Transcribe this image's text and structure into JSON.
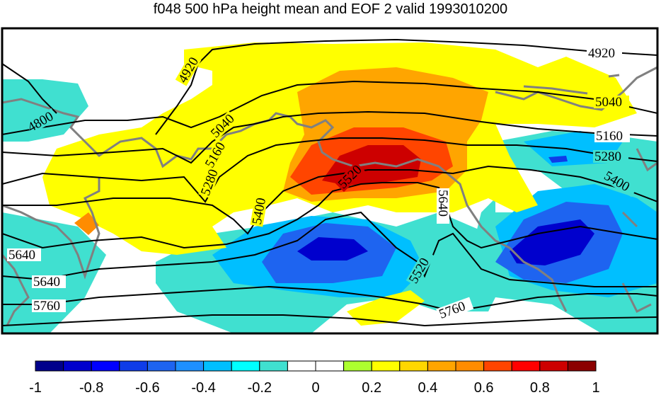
{
  "title": "f048 500 hPa height mean and EOF 2 valid 1993010200",
  "colorbar": {
    "colors": [
      "#00008b",
      "#0000cd",
      "#0000ff",
      "#0f3ce8",
      "#1e64f0",
      "#1e90ff",
      "#00bfff",
      "#00ffff",
      "#40e0d0",
      "#ffffff",
      "#ffffff",
      "#adff2f",
      "#ffff00",
      "#ffd700",
      "#ffa500",
      "#ff8c00",
      "#ff4500",
      "#ff0000",
      "#cd0000",
      "#8b0000"
    ],
    "tick_labels": [
      "-1",
      "-0.8",
      "-0.6",
      "-0.4",
      "-0.2",
      "0",
      "0.2",
      "0.4",
      "0.6",
      "0.8",
      "1"
    ]
  },
  "contours": {
    "labels": [
      "4920",
      "4800",
      "5040",
      "5160",
      "5280",
      "5400",
      "5520",
      "5640",
      "5760",
      "4920",
      "5040",
      "5160",
      "5280",
      "5400",
      "5520",
      "5640",
      "5640",
      "5760"
    ],
    "color": "#000000",
    "coastline_color": "#808080"
  },
  "shading": {
    "cyan": "#40e0d0",
    "light_blue": "#00bfff",
    "blue": "#1e64f0",
    "dark_blue": "#0000cd",
    "yellow": "#ffff00",
    "gold": "#ffd700",
    "orange": "#ffa500",
    "dark_orange": "#ff8c00",
    "red": "#ff4500",
    "dark_red": "#cd0000"
  }
}
